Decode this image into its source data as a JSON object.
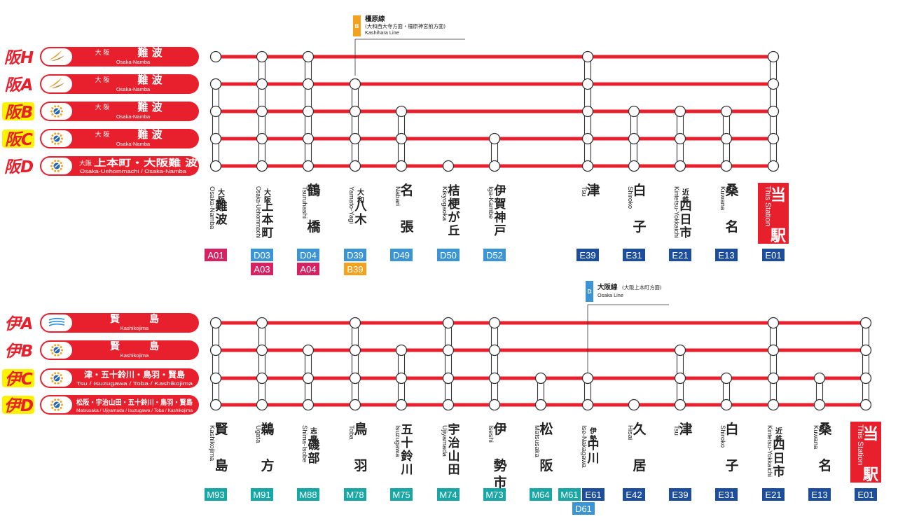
{
  "colors": {
    "line_red": "#e8202d",
    "badge_a": "#d62263",
    "badge_d": "#3b94d3",
    "badge_b": "#f4a21e",
    "badge_e": "#1d4e9e",
    "badge_m": "#17a8a6",
    "prefix_highlight": "#fff200",
    "this_station": "#e8202d"
  },
  "osaka_section": {
    "trains": [
      {
        "prefix": "阪H",
        "highlight": false,
        "icon": "urban-liner-icon",
        "pre": "大 阪",
        "dest": "難 波",
        "dest_en": "Osaka-Namba"
      },
      {
        "prefix": "阪A",
        "highlight": false,
        "icon": "urban-liner-icon",
        "pre": "大 阪",
        "dest": "難 波",
        "dest_en": "Osaka-Namba"
      },
      {
        "prefix": "阪B",
        "highlight": true,
        "icon": "limited-express-icon",
        "pre": "大 阪",
        "dest": "難 波",
        "dest_en": "Osaka-Namba"
      },
      {
        "prefix": "阪C",
        "highlight": true,
        "icon": "limited-express-icon",
        "pre": "大 阪",
        "dest": "難 波",
        "dest_en": "Osaka-Namba"
      },
      {
        "prefix": "阪D",
        "highlight": false,
        "icon": "limited-express-icon",
        "pre": "大阪",
        "dest": "上本町・大阪難 波",
        "dest_en": "Osaka-Uehommachi / Osaka-Namba"
      }
    ],
    "stations": [
      {
        "kanji": [
          "大",
          "阪",
          "難",
          "波"
        ],
        "small": 2,
        "en": "Osaka-Namba",
        "codes": [
          {
            "t": "A01",
            "c": "a"
          }
        ],
        "stops": [
          1,
          1,
          1,
          1,
          1
        ],
        "conn": [
          0,
          1,
          1,
          1
        ]
      },
      {
        "kanji": [
          "大",
          "阪",
          "上",
          "本",
          "町"
        ],
        "small": 2,
        "en": "Osaka-Uehommachi",
        "codes": [
          {
            "t": "D03",
            "c": "d"
          },
          {
            "t": "A03",
            "c": "a"
          }
        ],
        "stops": [
          1,
          1,
          1,
          1,
          1
        ],
        "conn": [
          1,
          1,
          1,
          1
        ]
      },
      {
        "kanji": [
          "鶴",
          "",
          "橋"
        ],
        "small": 0,
        "en": "Tsuruhashi",
        "codes": [
          {
            "t": "D04",
            "c": "d"
          },
          {
            "t": "A04",
            "c": "a"
          }
        ],
        "stops": [
          1,
          1,
          1,
          1,
          1
        ],
        "conn": [
          1,
          1,
          1,
          1
        ]
      },
      {
        "kanji": [
          "大",
          "和",
          "八",
          "木"
        ],
        "small": 2,
        "en": "Yamato-Yagi",
        "codes": [
          {
            "t": "D39",
            "c": "d"
          },
          {
            "t": "B39",
            "c": "b"
          }
        ],
        "stops": [
          0,
          1,
          1,
          1,
          1
        ],
        "conn": [
          0,
          1,
          1,
          1
        ]
      },
      {
        "kanji": [
          "名",
          "",
          "張"
        ],
        "small": 0,
        "en": "Nabari",
        "codes": [
          {
            "t": "D49",
            "c": "d"
          }
        ],
        "stops": [
          0,
          0,
          1,
          1,
          1
        ],
        "conn": [
          0,
          0,
          1,
          1
        ]
      },
      {
        "kanji": [
          "桔",
          "梗",
          "が",
          "丘"
        ],
        "small": 0,
        "en": "Kikyogaoka",
        "codes": [
          {
            "t": "D50",
            "c": "d"
          }
        ],
        "stops": [
          0,
          0,
          0,
          0,
          1
        ],
        "conn": [
          0,
          0,
          0,
          0
        ]
      },
      {
        "kanji": [
          "伊",
          "賀",
          "神",
          "戸"
        ],
        "small": 0,
        "en": "Iga-Kambe",
        "codes": [
          {
            "t": "D52",
            "c": "d"
          }
        ],
        "stops": [
          0,
          0,
          0,
          1,
          1
        ],
        "conn": [
          0,
          0,
          0,
          1
        ]
      },
      {
        "kanji": [
          "津"
        ],
        "small": 0,
        "en": "Tsu",
        "codes": [
          {
            "t": "E39",
            "c": "e"
          }
        ],
        "stops": [
          1,
          1,
          1,
          1,
          1
        ],
        "conn": [
          1,
          1,
          1,
          1
        ]
      },
      {
        "kanji": [
          "白",
          "",
          "子"
        ],
        "small": 0,
        "en": "Shiroko",
        "codes": [
          {
            "t": "E31",
            "c": "e"
          }
        ],
        "stops": [
          0,
          0,
          1,
          1,
          1
        ],
        "conn": [
          0,
          0,
          1,
          1
        ]
      },
      {
        "kanji": [
          "近",
          "鉄",
          "四",
          "日",
          "市"
        ],
        "small": 2,
        "en": "Kintetsu-Yokkaichi",
        "codes": [
          {
            "t": "E21",
            "c": "e"
          }
        ],
        "stops": [
          0,
          0,
          1,
          1,
          1
        ],
        "conn": [
          0,
          0,
          1,
          1
        ]
      },
      {
        "kanji": [
          "桑",
          "",
          "名"
        ],
        "small": 0,
        "en": "Kuwana",
        "codes": [
          {
            "t": "E13",
            "c": "e"
          }
        ],
        "stops": [
          0,
          0,
          1,
          1,
          1
        ],
        "conn": [
          0,
          0,
          1,
          1
        ]
      },
      {
        "this": true,
        "kanji": [
          "当",
          "駅"
        ],
        "en": "This Station",
        "codes": [
          {
            "t": "E01",
            "c": "e"
          }
        ],
        "stops": [
          1,
          1,
          1,
          1,
          1
        ],
        "conn": [
          1,
          1,
          1,
          1
        ]
      }
    ],
    "callout": {
      "letter": "B",
      "name": "橿原線",
      "sub": "(大和西大寺方面・橿原神宮前方面)",
      "en": "Kashihara Line"
    }
  },
  "ise_section": {
    "trains": [
      {
        "prefix": "伊A",
        "highlight": false,
        "icon": "shimakaze-icon",
        "dest": "賢　　　島",
        "dest_en": "Kashikojima"
      },
      {
        "prefix": "伊B",
        "highlight": false,
        "icon": "limited-express-icon",
        "dest": "賢　　　島",
        "dest_en": "Kashikojima"
      },
      {
        "prefix": "伊C",
        "highlight": true,
        "icon": "limited-express-icon",
        "dest": "津・五十鈴川・鳥羽・賢島",
        "dest_en": "Tsu / Isuzugawa / Toba / Kashikojima"
      },
      {
        "prefix": "伊D",
        "highlight": true,
        "icon": "limited-express-icon",
        "dest": "松阪・宇治山田・五十鈴川・鳥羽・賢島",
        "dest_en": "Matsusaka / Ujiyamada / Isuzugawa / Toba / Kashikojima"
      }
    ],
    "stations": [
      {
        "kanji": [
          "賢",
          "",
          "島"
        ],
        "small": 0,
        "en": "Kashikojima",
        "codes": [
          {
            "t": "M93",
            "c": "m"
          }
        ],
        "stops": [
          1,
          1,
          1,
          1
        ],
        "conn": [
          1,
          1,
          1
        ]
      },
      {
        "kanji": [
          "鵜",
          "",
          "方"
        ],
        "small": 0,
        "en": "Ugata",
        "codes": [
          {
            "t": "M91",
            "c": "m"
          }
        ],
        "stops": [
          1,
          1,
          1,
          1
        ],
        "conn": [
          1,
          1,
          1
        ]
      },
      {
        "kanji": [
          "志",
          "摩",
          "磯",
          "部"
        ],
        "small": 2,
        "en": "Shima-Isobe",
        "codes": [
          {
            "t": "M88",
            "c": "m"
          }
        ],
        "stops": [
          0,
          1,
          1,
          1
        ],
        "conn": [
          0,
          1,
          1
        ]
      },
      {
        "kanji": [
          "鳥",
          "",
          "羽"
        ],
        "small": 0,
        "en": "Toba",
        "codes": [
          {
            "t": "M78",
            "c": "m"
          }
        ],
        "stops": [
          1,
          1,
          1,
          1
        ],
        "conn": [
          1,
          1,
          1
        ]
      },
      {
        "kanji": [
          "五",
          "十",
          "鈴",
          "川"
        ],
        "small": 0,
        "en": "Isuzugawa",
        "codes": [
          {
            "t": "M75",
            "c": "m"
          }
        ],
        "stops": [
          0,
          1,
          1,
          1
        ],
        "conn": [
          0,
          1,
          1
        ]
      },
      {
        "kanji": [
          "宇",
          "治",
          "山",
          "田"
        ],
        "small": 0,
        "en": "Ujiyamada",
        "codes": [
          {
            "t": "M74",
            "c": "m"
          }
        ],
        "stops": [
          1,
          1,
          1,
          1
        ],
        "conn": [
          1,
          1,
          1
        ]
      },
      {
        "kanji": [
          "伊",
          "",
          "勢",
          "市"
        ],
        "small": 0,
        "en": "Iseshi",
        "codes": [
          {
            "t": "M73",
            "c": "m"
          }
        ],
        "stops": [
          1,
          1,
          1,
          1
        ],
        "conn": [
          1,
          1,
          1
        ]
      },
      {
        "kanji": [
          "松",
          "",
          "阪"
        ],
        "small": 0,
        "en": "Matsusaka",
        "codes": [
          {
            "t": "M64",
            "c": "m"
          }
        ],
        "stops": [
          0,
          0,
          1,
          1
        ],
        "conn": [
          0,
          0,
          1
        ]
      },
      {
        "kanji": [
          "伊",
          "勢",
          "中",
          "川"
        ],
        "small": 2,
        "en": "Ise-Nakagawa",
        "codes": [
          {
            "t": "M61",
            "c": "m"
          },
          {
            "t": "E61",
            "c": "e"
          },
          {
            "t": "D61",
            "c": "d"
          }
        ],
        "stops": [
          0,
          0,
          1,
          1
        ],
        "conn": [
          0,
          0,
          1
        ]
      },
      {
        "kanji": [
          "久",
          "",
          "居"
        ],
        "small": 0,
        "en": "Hisai",
        "codes": [
          {
            "t": "E42",
            "c": "e"
          }
        ],
        "stops": [
          0,
          0,
          0,
          1
        ],
        "conn": [
          0,
          0,
          0
        ]
      },
      {
        "kanji": [
          "津"
        ],
        "small": 0,
        "en": "Tsu",
        "codes": [
          {
            "t": "E39",
            "c": "e"
          }
        ],
        "stops": [
          0,
          1,
          1,
          1
        ],
        "conn": [
          0,
          1,
          1
        ]
      },
      {
        "kanji": [
          "白",
          "",
          "子"
        ],
        "small": 0,
        "en": "Shiroko",
        "codes": [
          {
            "t": "E31",
            "c": "e"
          }
        ],
        "stops": [
          0,
          0,
          1,
          1
        ],
        "conn": [
          0,
          0,
          1
        ]
      },
      {
        "kanji": [
          "近",
          "鉄",
          "四",
          "日",
          "市"
        ],
        "small": 2,
        "en": "Kintetsu-Yokkaichi",
        "codes": [
          {
            "t": "E21",
            "c": "e"
          }
        ],
        "stops": [
          1,
          1,
          1,
          1
        ],
        "conn": [
          1,
          1,
          1
        ]
      },
      {
        "kanji": [
          "桑",
          "",
          "名"
        ],
        "small": 0,
        "en": "Kuwana",
        "codes": [
          {
            "t": "E13",
            "c": "e"
          }
        ],
        "stops": [
          0,
          0,
          1,
          1
        ],
        "conn": [
          0,
          0,
          1
        ]
      },
      {
        "this": true,
        "kanji": [
          "当",
          "駅"
        ],
        "en": "This Station",
        "codes": [
          {
            "t": "E01",
            "c": "e"
          }
        ],
        "stops": [
          1,
          1,
          1,
          1
        ],
        "conn": [
          1,
          1,
          1
        ]
      }
    ],
    "callout": {
      "letter": "D",
      "name": "大阪線",
      "sub": "(大阪上本町方面)",
      "en": "Osaka Line"
    }
  }
}
